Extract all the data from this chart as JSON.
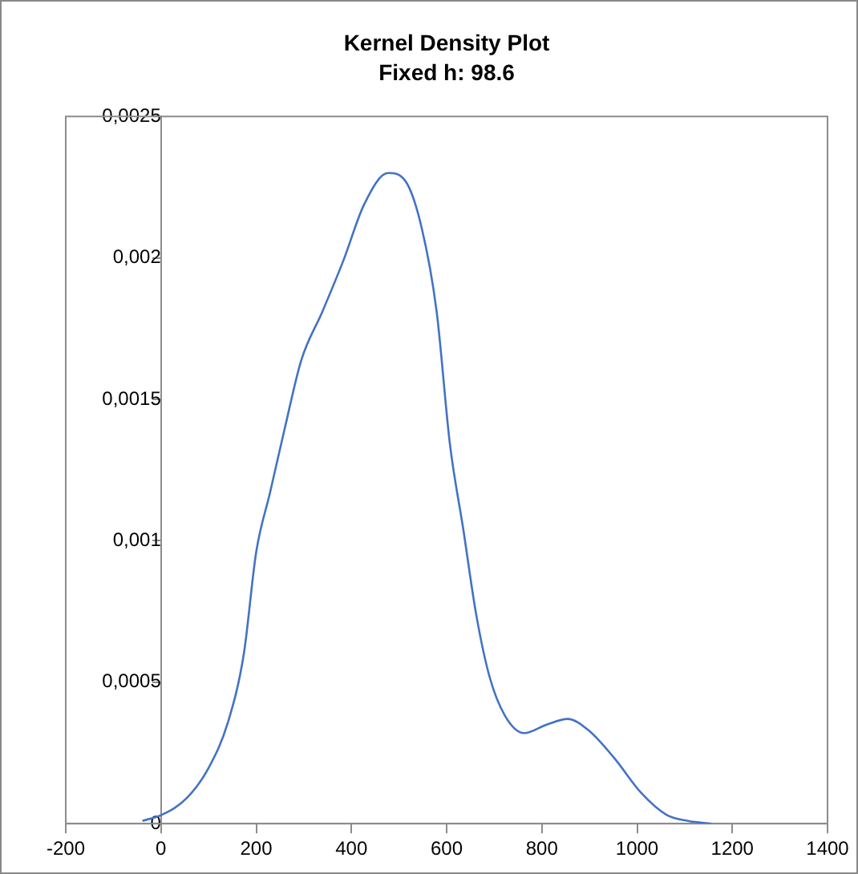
{
  "chart_data": {
    "type": "line",
    "title": "Kernel Density Plot",
    "subtitle": "Fixed h: 98.6",
    "x": [
      -39,
      0,
      54,
      101,
      141,
      174,
      200,
      229,
      259,
      295,
      339,
      383,
      427,
      477,
      514,
      547,
      579,
      607,
      635,
      662,
      690,
      723,
      763,
      810,
      854,
      898,
      953,
      1008,
      1063,
      1107,
      1156
    ],
    "series": [
      {
        "color": "#4472c4",
        "values": [
          1e-05,
          3e-05,
          9e-05,
          0.0002,
          0.00036,
          0.0006,
          0.00096,
          0.00117,
          0.00139,
          0.00164,
          0.00181,
          0.00199,
          0.00219,
          0.0023,
          0.00227,
          0.00211,
          0.00181,
          0.00134,
          0.00104,
          0.00074,
          0.00052,
          0.00038,
          0.00032,
          0.00035,
          0.00037,
          0.00033,
          0.00023,
          0.00011,
          3e-05,
          1e-05,
          0
        ]
      }
    ],
    "xlim": [
      -200,
      1400
    ],
    "xticks": [
      -200,
      0,
      200,
      400,
      600,
      800,
      1000,
      1200,
      1400
    ],
    "ylim": [
      0,
      0.0025
    ],
    "yticks": [
      0,
      {
        "value": 0.0005,
        "label": "0,0005"
      },
      {
        "value": 0.001,
        "label": "0,001"
      },
      {
        "value": 0.0015,
        "label": "0,0015"
      },
      {
        "value": 0.002,
        "label": "0,002"
      },
      {
        "value": 0.0025,
        "label": "0,0025"
      }
    ],
    "grid": false,
    "legend": false,
    "marker": "none",
    "line_style": "solid"
  }
}
